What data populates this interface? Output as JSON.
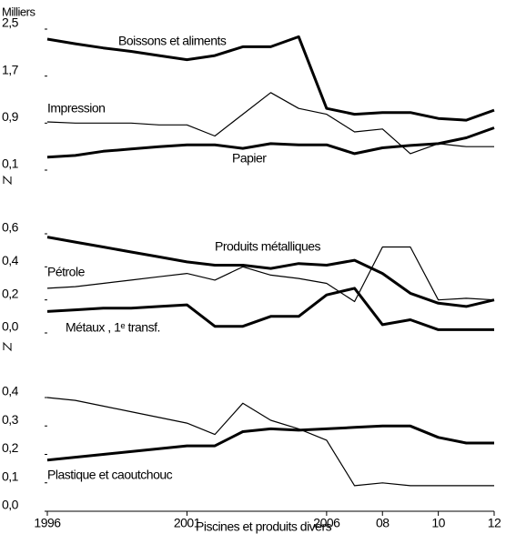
{
  "chart_data": [
    {
      "type": "line",
      "ylabel": "Milliers",
      "x": [
        1996,
        1997,
        1998,
        1999,
        2000,
        2001,
        2002,
        2003,
        2004,
        2005,
        2006,
        2007,
        2008,
        2009,
        2010,
        2011,
        2012
      ],
      "ylim": [
        0.1,
        2.5
      ],
      "yticks": [
        {
          "value": 0.1,
          "label": "0,1"
        },
        {
          "value": 0.9,
          "label": "0,9"
        },
        {
          "value": 1.7,
          "label": "1,7"
        },
        {
          "value": 2.5,
          "label": "2,5"
        }
      ],
      "series": [
        {
          "name": "Boissons et aliments",
          "color": "#000000",
          "width": "thick",
          "values": [
            2.33,
            2.25,
            2.18,
            2.12,
            2.05,
            1.98,
            2.05,
            2.2,
            2.2,
            2.37,
            1.15,
            1.05,
            1.08,
            1.08,
            0.98,
            0.95,
            1.12
          ]
        },
        {
          "name": "Impression",
          "color": "#000000",
          "width": "thin",
          "values": [
            0.92,
            0.9,
            0.9,
            0.9,
            0.87,
            0.87,
            0.68,
            1.05,
            1.42,
            1.15,
            1.05,
            0.75,
            0.8,
            0.38,
            0.55,
            0.5,
            0.5
          ]
        },
        {
          "name": "Papier",
          "color": "#000000",
          "width": "thick",
          "values": [
            0.32,
            0.35,
            0.42,
            0.46,
            0.5,
            0.53,
            0.53,
            0.47,
            0.55,
            0.53,
            0.53,
            0.38,
            0.48,
            0.52,
            0.55,
            0.65,
            0.82
          ]
        }
      ]
    },
    {
      "type": "line",
      "x": [
        1996,
        1997,
        1998,
        1999,
        2000,
        2001,
        2002,
        2003,
        2004,
        2005,
        2006,
        2007,
        2008,
        2009,
        2010,
        2011,
        2012
      ],
      "ylim": [
        0,
        0.6
      ],
      "yticks": [
        {
          "value": 0,
          "label": "0,0"
        },
        {
          "value": 0.2,
          "label": "0,2"
        },
        {
          "value": 0.4,
          "label": "0,4"
        },
        {
          "value": 0.6,
          "label": "0,6"
        }
      ],
      "series": [
        {
          "name": "Produits métalliques",
          "color": "#000000",
          "width": "thick",
          "values": [
            0.58,
            0.55,
            0.52,
            0.49,
            0.46,
            0.43,
            0.41,
            0.41,
            0.39,
            0.42,
            0.41,
            0.44,
            0.36,
            0.24,
            0.18,
            0.16,
            0.2
          ]
        },
        {
          "name": "Pétrole",
          "color": "#000000",
          "width": "thin",
          "values": [
            0.27,
            0.28,
            0.3,
            0.32,
            0.34,
            0.36,
            0.32,
            0.4,
            0.35,
            0.33,
            0.3,
            0.19,
            0.52,
            0.52,
            0.2,
            0.21,
            0.2
          ]
        },
        {
          "name": "Métaux , 1ᵉ transf.",
          "color": "#000000",
          "width": "thick",
          "values": [
            0.13,
            0.14,
            0.15,
            0.15,
            0.16,
            0.17,
            0.04,
            0.04,
            0.1,
            0.1,
            0.23,
            0.27,
            0.05,
            0.08,
            0.02,
            0.02,
            0.02
          ]
        }
      ]
    },
    {
      "type": "line",
      "x": [
        1996,
        1997,
        1998,
        1999,
        2000,
        2001,
        2002,
        2003,
        2004,
        2005,
        2006,
        2007,
        2008,
        2009,
        2010,
        2011,
        2012
      ],
      "xlim": [
        1996,
        2012
      ],
      "xticks": [
        1996,
        2001,
        2006,
        {
          "value": 2008,
          "label": "08"
        },
        {
          "value": 2010,
          "label": "10"
        },
        {
          "value": 2012,
          "label": "12"
        }
      ],
      "ylim": [
        0,
        0.4
      ],
      "yticks": [
        {
          "value": 0,
          "label": "0,0"
        },
        {
          "value": 0.1,
          "label": "0,1"
        },
        {
          "value": 0.2,
          "label": "0,2"
        },
        {
          "value": 0.3,
          "label": "0,3"
        },
        {
          "value": 0.4,
          "label": "0,4"
        }
      ],
      "series": [
        {
          "name": "Plastique et caoutchouc",
          "color": "#000000",
          "width": "thick",
          "values": [
            0.18,
            0.19,
            0.2,
            0.21,
            0.22,
            0.23,
            0.23,
            0.28,
            0.29,
            0.285,
            0.29,
            0.295,
            0.3,
            0.3,
            0.26,
            0.24,
            0.24
          ]
        },
        {
          "name": "Piscines et produits divers",
          "color": "#000000",
          "width": "thin",
          "values": [
            0.4,
            0.39,
            0.37,
            0.35,
            0.33,
            0.31,
            0.27,
            0.38,
            0.32,
            0.29,
            0.25,
            0.09,
            0.1,
            0.09,
            0.09,
            0.09,
            0.09
          ]
        }
      ]
    }
  ]
}
